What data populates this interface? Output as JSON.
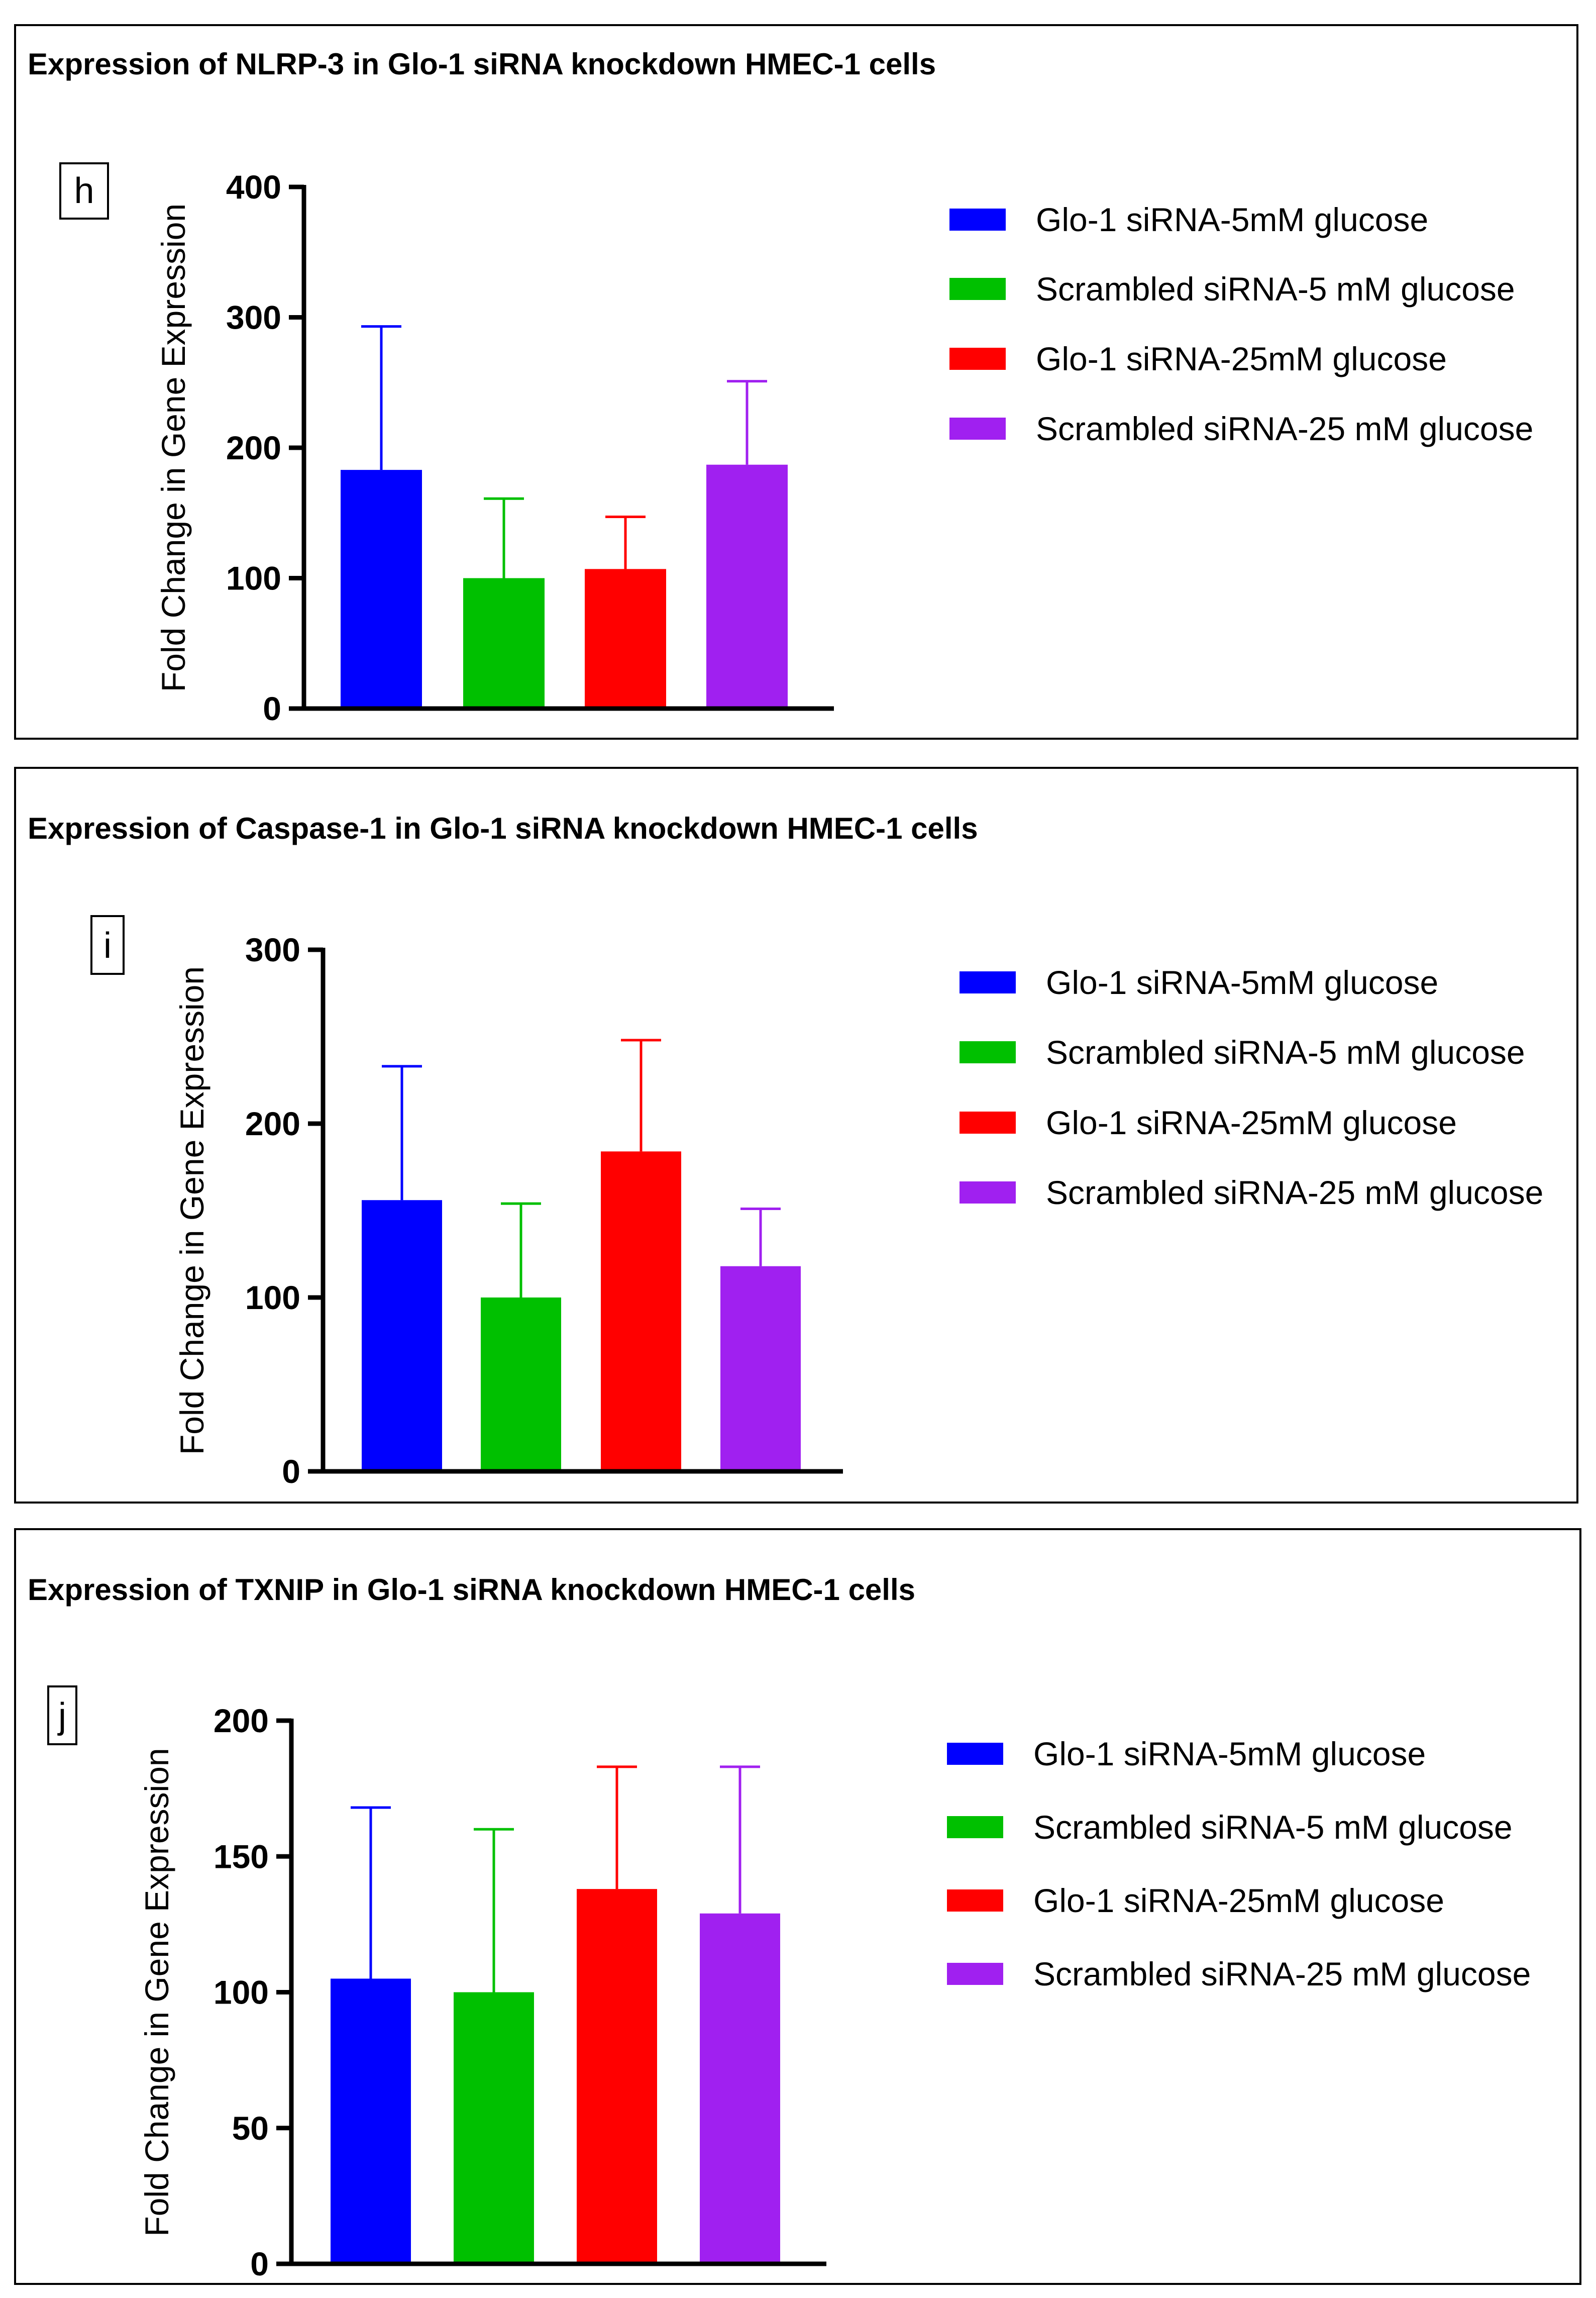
{
  "chart_data": [
    {
      "type": "bar",
      "panel_letter": "h",
      "title": "Expression of NLRP-3 in Glo-1 siRNA knockdown HMEC-1 cells",
      "xlabel": "",
      "ylabel": "Fold Change in Gene Expression",
      "ylim": [
        0,
        400
      ],
      "yticks": [
        0,
        100,
        200,
        300,
        400
      ],
      "grid": false,
      "legend_position": "right",
      "categories": [
        "Glo-1 siRNA-5mM glucose",
        "Scrambled siRNA-5 mM glucose",
        "Glo-1 siRNA-25mM glucose",
        "Scrambled siRNA-25 mM glucose"
      ],
      "values": [
        183,
        100,
        107,
        187
      ],
      "error_upper": [
        293,
        161,
        147,
        251
      ],
      "colors": [
        "#0000ff",
        "#00c000",
        "#ff0000",
        "#a020f0"
      ],
      "legend": [
        "Glo-1 siRNA-5mM glucose",
        "Scrambled siRNA-5 mM glucose",
        "Glo-1 siRNA-25mM glucose",
        "Scrambled siRNA-25 mM glucose"
      ]
    },
    {
      "type": "bar",
      "panel_letter": "i",
      "title": "Expression of Caspase-1 in Glo-1 siRNA knockdown HMEC-1 cells",
      "xlabel": "",
      "ylabel": "Fold Change in Gene Expression",
      "ylim": [
        0,
        300
      ],
      "yticks": [
        0,
        100,
        200,
        300
      ],
      "grid": false,
      "legend_position": "right",
      "categories": [
        "Glo-1 siRNA-5mM glucose",
        "Scrambled siRNA-5 mM glucose",
        "Glo-1 siRNA-25mM glucose",
        "Scrambled siRNA-25 mM glucose"
      ],
      "values": [
        156,
        100,
        184,
        118
      ],
      "error_upper": [
        233,
        154,
        248,
        151
      ],
      "colors": [
        "#0000ff",
        "#00c000",
        "#ff0000",
        "#a020f0"
      ],
      "legend": [
        "Glo-1 siRNA-5mM glucose",
        "Scrambled siRNA-5 mM glucose",
        "Glo-1 siRNA-25mM glucose",
        "Scrambled siRNA-25 mM glucose"
      ]
    },
    {
      "type": "bar",
      "panel_letter": "j",
      "title": "Expression of TXNIP in Glo-1 siRNA knockdown HMEC-1 cells",
      "xlabel": "",
      "ylabel": "Fold Change in Gene Expression",
      "ylim": [
        0,
        200
      ],
      "yticks": [
        0,
        50,
        100,
        150,
        200
      ],
      "grid": false,
      "legend_position": "right",
      "categories": [
        "Glo-1 siRNA-5mM glucose",
        "Scrambled siRNA-5 mM glucose",
        "Glo-1 siRNA-25mM glucose",
        "Scrambled siRNA-25 mM glucose"
      ],
      "values": [
        105,
        100,
        138,
        129
      ],
      "error_upper": [
        168,
        160,
        183,
        183
      ],
      "colors": [
        "#0000ff",
        "#00c000",
        "#ff0000",
        "#a020f0"
      ],
      "legend": [
        "Glo-1 siRNA-5mM glucose",
        "Scrambled siRNA-5 mM glucose",
        "Glo-1 siRNA-25mM glucose",
        "Scrambled siRNA-25 mM glucose"
      ]
    }
  ]
}
